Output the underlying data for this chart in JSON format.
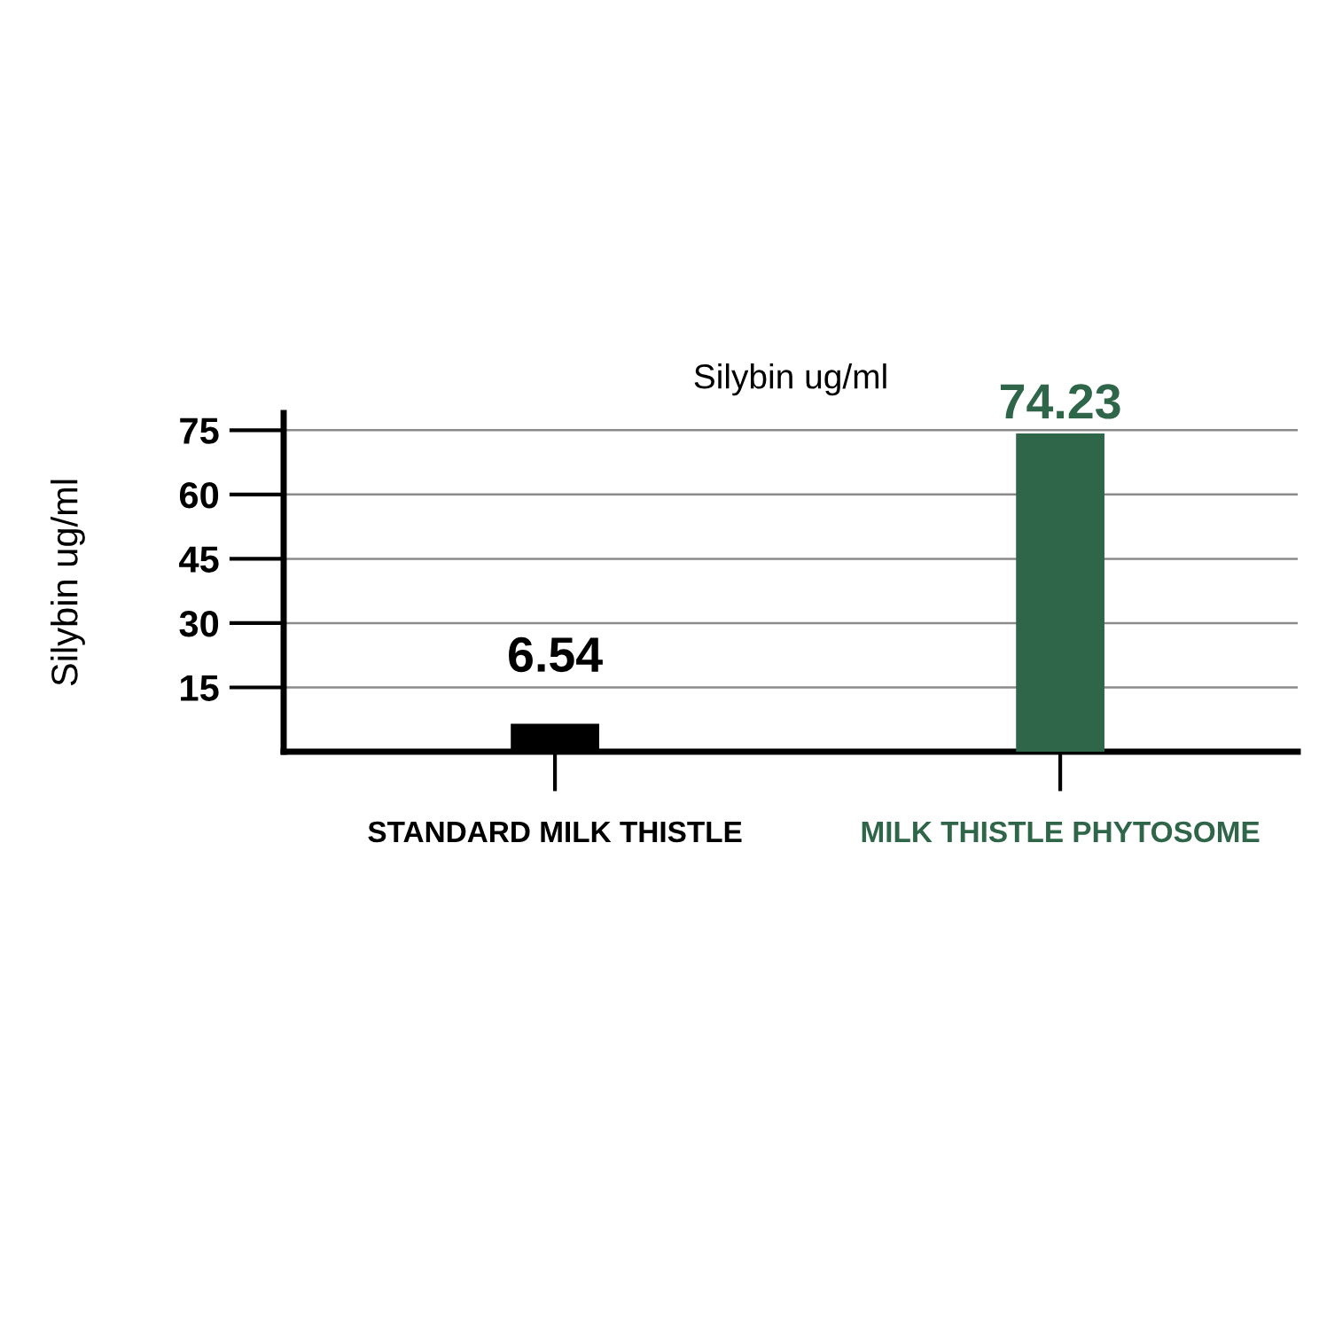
{
  "chart_data": {
    "type": "bar",
    "title": "Silybin ug/ml",
    "ylabel": "Silybin ug/ml",
    "categories": [
      "STANDARD MILK THISTLE",
      "MILK THISTLE PHYTOSOME"
    ],
    "values": [
      6.54,
      74.23
    ],
    "colors": [
      "#000000",
      "#2f6649"
    ],
    "ylim": [
      0,
      79
    ],
    "yticks": [
      15,
      30,
      45,
      60,
      75
    ],
    "grid": "y",
    "legend": false,
    "data_labels": true
  }
}
